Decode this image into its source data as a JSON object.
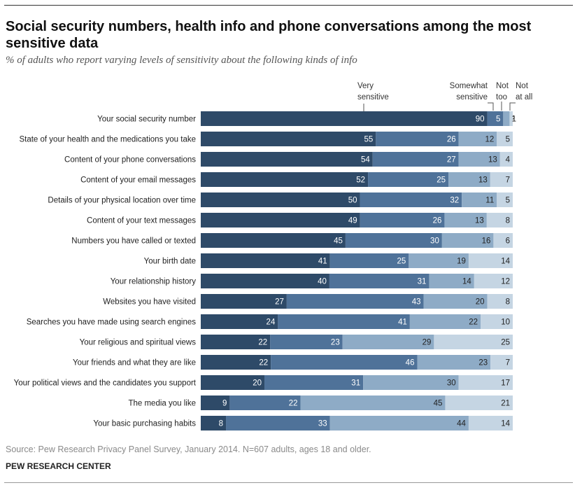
{
  "header": {
    "title": "Social security numbers, health info and phone conversations among the most sensitive data",
    "subtitle": "% of adults who report varying levels of sensitivity about the following kinds of info"
  },
  "footer": {
    "source": "Source: Pew Research Privacy Panel Survey, January 2014. N=607 adults, ages 18 and older.",
    "brand": "PEW RESEARCH CENTER"
  },
  "colors": {
    "very_sensitive": "#2e4a68",
    "somewhat_sensitive": "#4f7299",
    "not_too": "#8eabc6",
    "not_at_all": "#c5d5e3"
  },
  "chart_data": {
    "type": "bar",
    "orientation": "horizontal",
    "stacked": true,
    "title": "Social security numbers, health info and phone conversations among the most sensitive data",
    "subtitle": "% of adults who report varying levels of sensitivity about the following kinds of info",
    "categories": [
      "Your social security number",
      "State of your health and the medications you take",
      "Content of your phone conversations",
      "Content of your email messages",
      "Details of your physical location over time",
      "Content of your text messages",
      "Numbers you have called or texted",
      "Your birth date",
      "Your relationship history",
      "Websites you have visited",
      "Searches you have made using search engines",
      "Your religious and spiritual views",
      "Your friends and what they are like",
      "Your political views and the candidates you support",
      "The media you like",
      "Your basic purchasing habits"
    ],
    "series": [
      {
        "name": "Very sensitive",
        "values": [
          90,
          55,
          54,
          52,
          50,
          49,
          45,
          41,
          40,
          27,
          24,
          22,
          22,
          20,
          9,
          8
        ]
      },
      {
        "name": "Somewhat sensitive",
        "values": [
          5,
          26,
          27,
          25,
          32,
          26,
          30,
          25,
          31,
          43,
          41,
          23,
          46,
          31,
          22,
          33
        ]
      },
      {
        "name": "Not too",
        "values": [
          2,
          12,
          13,
          13,
          11,
          13,
          16,
          19,
          14,
          20,
          22,
          29,
          23,
          30,
          45,
          44
        ]
      },
      {
        "name": "Not at all",
        "values": [
          1,
          5,
          4,
          7,
          5,
          8,
          6,
          14,
          12,
          8,
          10,
          25,
          7,
          17,
          21,
          14
        ]
      }
    ],
    "legend_labels": {
      "very": [
        "Very",
        "sensitive"
      ],
      "somewhat": [
        "Somewhat",
        "sensitive"
      ],
      "not_too": [
        "Not",
        "too"
      ],
      "not_at_all": [
        "Not",
        "at all"
      ]
    }
  }
}
